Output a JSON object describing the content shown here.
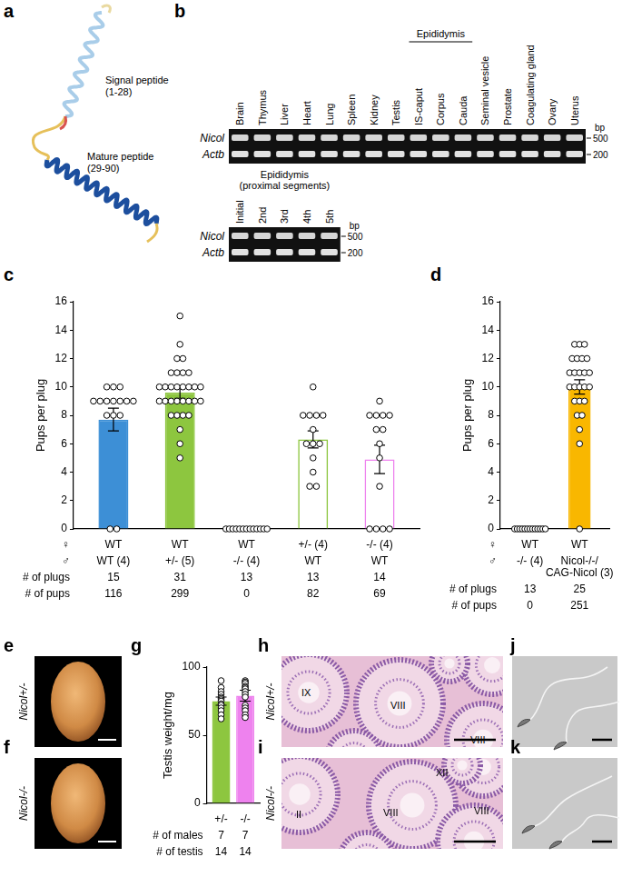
{
  "chart_data": [
    {
      "panel": "c",
      "type": "bar",
      "y_label": "Pups per plug",
      "ylim": [
        0,
        16
      ],
      "yticks": [
        0,
        2,
        4,
        6,
        8,
        10,
        12,
        14,
        16
      ],
      "grid": false,
      "tick_labels": "y",
      "marker": "circle",
      "values": [
        7.7,
        9.6,
        0,
        6.3,
        4.9
      ],
      "errors": [
        0.8,
        0.4,
        0,
        0.6,
        1.0
      ],
      "colors": [
        "#3d8fd6",
        "#8dc63f",
        "#ee82ee",
        "#8dc63f00",
        "#ee82ee00"
      ],
      "points": [
        [
          10,
          10,
          10,
          9,
          9,
          9,
          9,
          9,
          9,
          9,
          8,
          8,
          8,
          0,
          0
        ],
        [
          15,
          13,
          12,
          12,
          11,
          11,
          11,
          11,
          10,
          10,
          10,
          10,
          10,
          10,
          10,
          10,
          9,
          9,
          9,
          9,
          9,
          9,
          9,
          9,
          8,
          8,
          8,
          8,
          7,
          6,
          5
        ],
        [
          0,
          0,
          0,
          0,
          0,
          0,
          0,
          0,
          0,
          0,
          0,
          0,
          0
        ],
        [
          10,
          8,
          8,
          8,
          8,
          7,
          6,
          6,
          6,
          5,
          4,
          3,
          3
        ],
        [
          9,
          8,
          8,
          8,
          8,
          7,
          7,
          6,
          5,
          3,
          0,
          0,
          0,
          0
        ]
      ],
      "table": [
        {
          "label": "♀",
          "cells": [
            "WT",
            "WT",
            "WT",
            "+/- (4)",
            "-/- (4)"
          ]
        },
        {
          "label": "♂",
          "cells": [
            "WT (4)",
            "+/- (5)",
            "-/- (4)",
            "WT",
            "WT"
          ]
        },
        {
          "label": "# of plugs",
          "cells": [
            15,
            31,
            13,
            13,
            14
          ]
        },
        {
          "label": "# of pups",
          "cells": [
            116,
            299,
            0,
            82,
            69
          ]
        }
      ]
    },
    {
      "panel": "d",
      "type": "bar",
      "y_label": "Pups per plug",
      "ylim": [
        0,
        16
      ],
      "yticks": [
        0,
        2,
        4,
        6,
        8,
        10,
        12,
        14,
        16
      ],
      "grid": false,
      "tick_labels": "y",
      "marker": "circle",
      "values": [
        0,
        10.0
      ],
      "errors": [
        0,
        0.5
      ],
      "colors": [
        "#ee82ee",
        "#f9b700"
      ],
      "points": [
        [
          0,
          0,
          0,
          0,
          0,
          0,
          0,
          0,
          0,
          0,
          0,
          0,
          0
        ],
        [
          13,
          13,
          13,
          12,
          12,
          12,
          12,
          11,
          11,
          11,
          11,
          11,
          10,
          10,
          10,
          10,
          10,
          9,
          9,
          9,
          8,
          8,
          7,
          6,
          0
        ]
      ],
      "table": [
        {
          "label": "♀",
          "cells": [
            "WT",
            "WT"
          ]
        },
        {
          "label": "♂",
          "cells": [
            "-/- (4)",
            "Nicol-/-/\nCAG-Nicol (3)"
          ]
        },
        {
          "label": "# of plugs",
          "cells": [
            13,
            25
          ]
        },
        {
          "label": "# of pups",
          "cells": [
            0,
            251
          ]
        }
      ]
    },
    {
      "panel": "g",
      "type": "bar",
      "y_label": "Testis weight/mg",
      "ylim": [
        0,
        100
      ],
      "yticks": [
        0,
        50,
        100
      ],
      "grid": false,
      "tick_labels": "y",
      "marker": "circle",
      "values": [
        75,
        79
      ],
      "errors": [
        3,
        4
      ],
      "colors": [
        "#8dc63f",
        "#ee82ee"
      ],
      "points": [
        [
          90,
          85,
          82,
          80,
          78,
          77,
          76,
          75,
          73,
          72,
          70,
          68,
          65,
          62
        ],
        [
          90,
          89,
          88,
          86,
          85,
          84,
          82,
          80,
          78,
          72,
          70,
          68,
          65,
          63
        ]
      ],
      "table": [
        {
          "label": null,
          "cells": [
            "+/-",
            "-/-"
          ]
        },
        {
          "label": "# of males",
          "cells": [
            7,
            7
          ]
        },
        {
          "label": "# of testis",
          "cells": [
            14,
            14
          ]
        }
      ]
    }
  ],
  "structure": {
    "panel": "a",
    "labels": [
      [
        "Signal peptide",
        "(1-28)"
      ],
      [
        "Mature peptide",
        "(29-90)"
      ]
    ]
  },
  "gel": {
    "panel": "b",
    "lanes": [
      "Brain",
      "Thymus",
      "Liver",
      "Heart",
      "Lung",
      "Spleen",
      "Kidney",
      "Testis",
      {
        "group": "Epididymis",
        "lanes": [
          "IS-caput",
          "Corpus",
          "Cauda"
        ]
      },
      "Seminal vesicle",
      "Prostate",
      "Coagulating gland",
      "Ovary",
      "Uterus"
    ],
    "rows": [
      "Nicol",
      "Actb"
    ],
    "unit": "bp",
    "markers": [
      500,
      200
    ],
    "segments": {
      "title": [
        "Epididymis",
        "(proximal segments)"
      ],
      "lanes": [
        "Initial",
        "2nd",
        "3rd",
        "4th",
        "5th"
      ]
    }
  },
  "testis": {
    "panels": [
      {
        "panel": "e",
        "genotype": "Nicol+/-"
      },
      {
        "panel": "f",
        "genotype": "Nicol-/-"
      }
    ]
  },
  "histology": {
    "panels": [
      {
        "panel": "h",
        "genotype": "Nicol+/-",
        "stages": [
          "IX",
          "VIII",
          "VIII"
        ]
      },
      {
        "panel": "i",
        "genotype": "Nicol-/-",
        "stages": [
          "XII",
          "II",
          "VIII",
          "VIII"
        ]
      }
    ]
  },
  "sperm": {
    "panels": [
      {
        "panel": "j"
      },
      {
        "panel": "k"
      }
    ]
  }
}
